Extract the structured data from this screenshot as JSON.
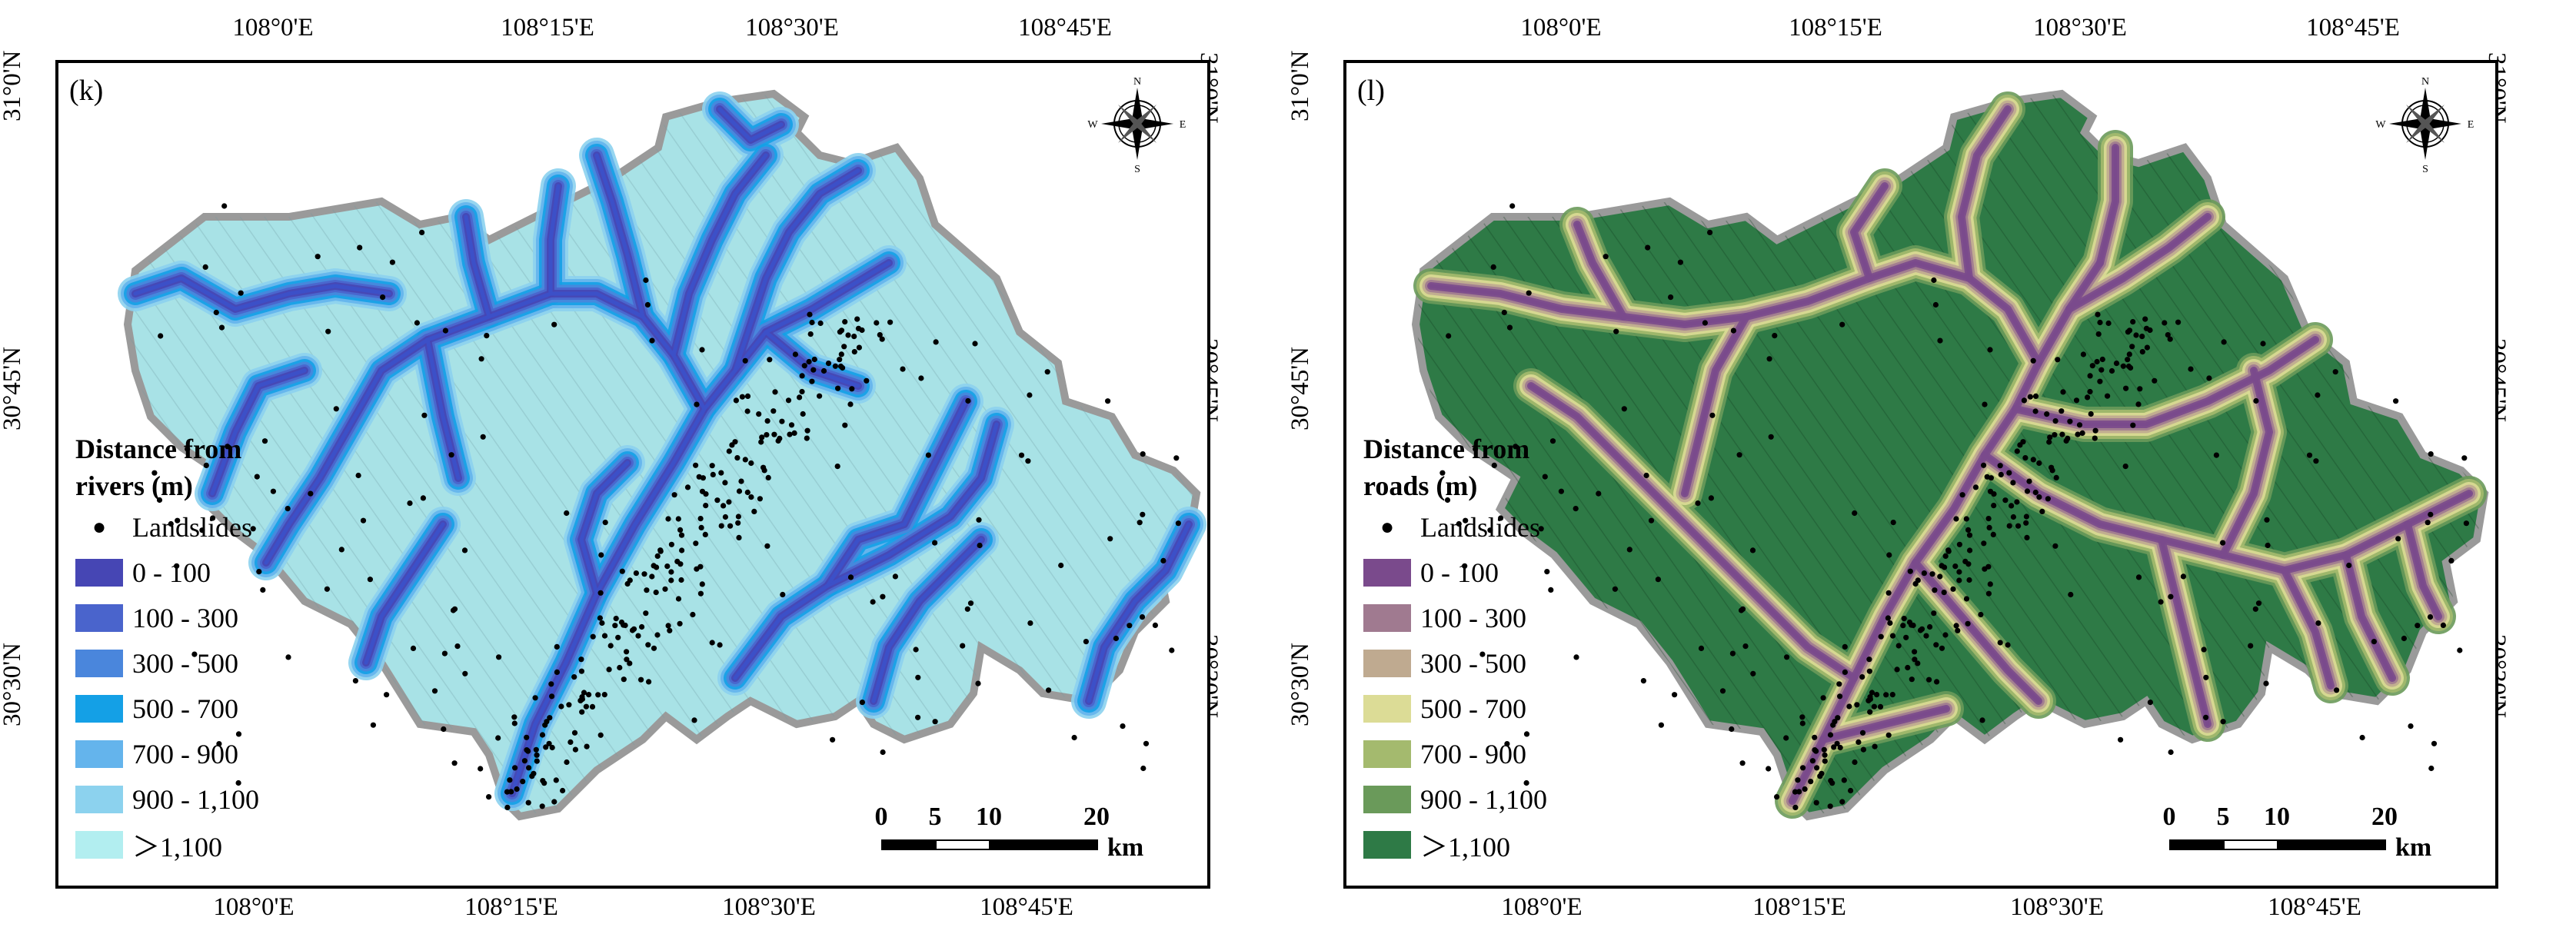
{
  "panels": [
    {
      "label": "(k)",
      "legend_title_line1": "Distance from",
      "legend_title_line2": "rivers (m)",
      "landslides_label": "Landslides",
      "classes": [
        {
          "label": "0 - 100",
          "color": "#4646b4"
        },
        {
          "label": "100 - 300",
          "color": "#4a64cc"
        },
        {
          "label": "300 - 500",
          "color": "#4a86dc"
        },
        {
          "label": "500 - 700",
          "color": "#14a0e6"
        },
        {
          "label": "700 - 900",
          "color": "#64b4ec"
        },
        {
          "label": "900 - 1,100",
          "color": "#8cd2ee"
        },
        {
          "label": "＞1,100",
          "color": "#b2eef0"
        }
      ],
      "base_color": "#a8e2e6",
      "line_color": "#3c50c8"
    },
    {
      "label": "(l)",
      "legend_title_line1": "Distance from",
      "legend_title_line2": "roads (m)",
      "landslides_label": "Landslides",
      "classes": [
        {
          "label": "0 - 100",
          "color": "#7a4a8c"
        },
        {
          "label": "100 - 300",
          "color": "#a07a90"
        },
        {
          "label": "300 - 500",
          "color": "#bfaa90"
        },
        {
          "label": "500 - 700",
          "color": "#dcdc96"
        },
        {
          "label": "700 - 900",
          "color": "#a4ba6e"
        },
        {
          "label": "900 - 1,100",
          "color": "#6a9a5a"
        },
        {
          "label": "＞1,100",
          "color": "#2e7a46"
        }
      ],
      "base_color": "#2e7a46",
      "line_color": "#7a4a8c"
    }
  ],
  "axes": {
    "lon_ticks": [
      "108°0'E",
      "108°15'E",
      "108°30'E",
      "108°45'E"
    ],
    "lat_ticks": [
      "31°0'N",
      "30°45'N",
      "30°30'N"
    ]
  },
  "scale_bar": {
    "ticks": [
      "0",
      "5",
      "10",
      "20"
    ],
    "unit": "km"
  },
  "north_arrow": {
    "n": "N",
    "s": "S",
    "e": "E",
    "w": "W"
  }
}
